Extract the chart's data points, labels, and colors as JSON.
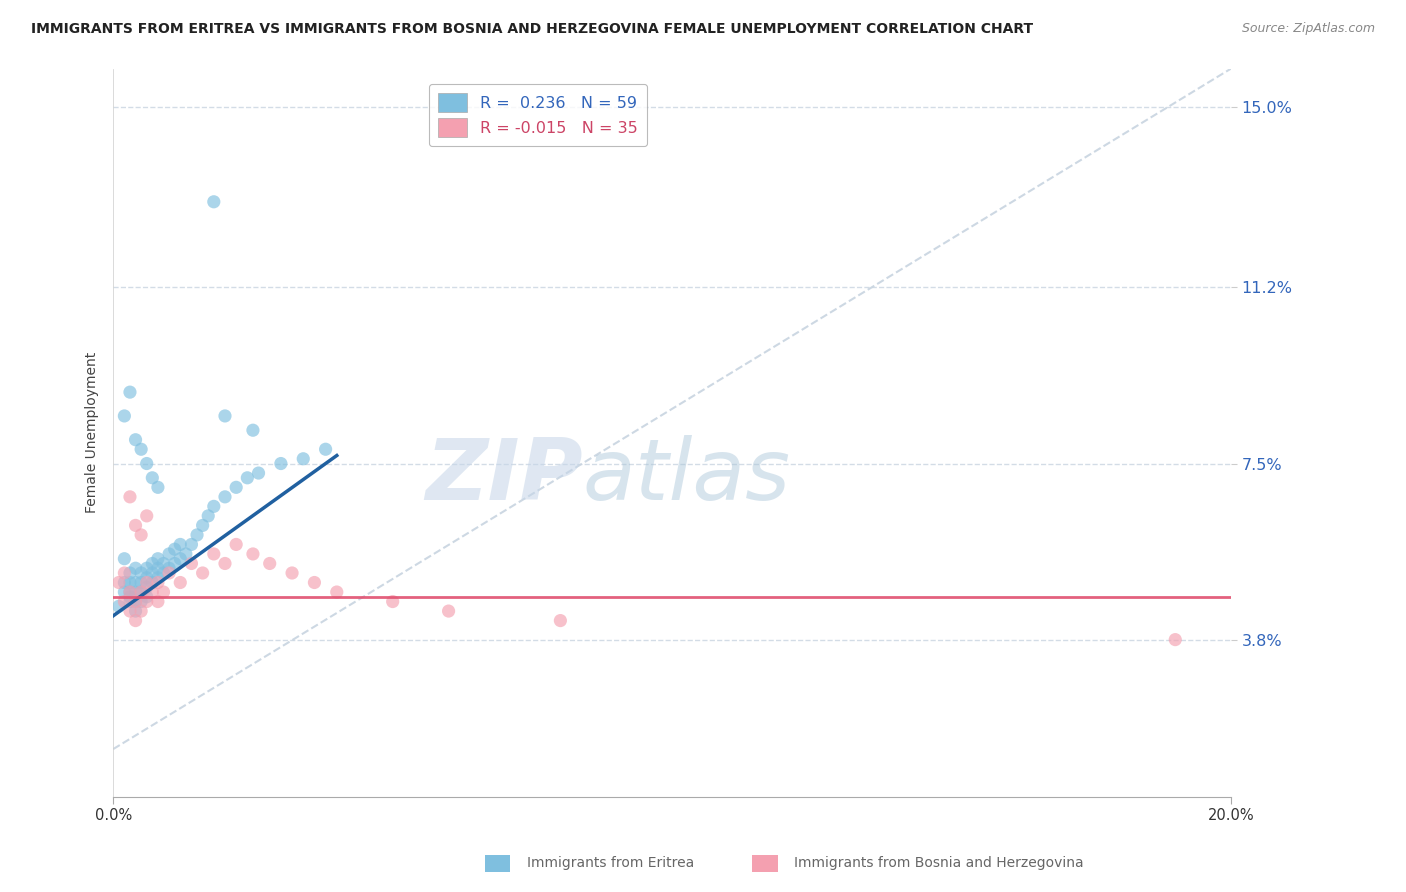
{
  "title": "IMMIGRANTS FROM ERITREA VS IMMIGRANTS FROM BOSNIA AND HERZEGOVINA FEMALE UNEMPLOYMENT CORRELATION CHART",
  "source": "Source: ZipAtlas.com",
  "ylabel": "Female Unemployment",
  "legend_label1": "Immigrants from Eritrea",
  "legend_label2": "Immigrants from Bosnia and Herzegovina",
  "r1": 0.236,
  "n1": 59,
  "r2": -0.015,
  "n2": 35,
  "xmin": 0.0,
  "xmax": 0.2,
  "ymin": 0.005,
  "ymax": 0.158,
  "yticks": [
    0.038,
    0.075,
    0.112,
    0.15
  ],
  "ytick_labels": [
    "3.8%",
    "7.5%",
    "11.2%",
    "15.0%"
  ],
  "color1": "#7fbfdf",
  "color2": "#f4a0b0",
  "trend_color1": "#2060a0",
  "trend_color2": "#e05070",
  "diag_color": "#c8d4e0",
  "watermark_zip": "ZIP",
  "watermark_atlas": "atlas",
  "background_color": "#ffffff",
  "blue_x": [
    0.001,
    0.002,
    0.002,
    0.002,
    0.003,
    0.003,
    0.003,
    0.003,
    0.003,
    0.004,
    0.004,
    0.004,
    0.004,
    0.004,
    0.005,
    0.005,
    0.005,
    0.005,
    0.006,
    0.006,
    0.006,
    0.006,
    0.007,
    0.007,
    0.007,
    0.008,
    0.008,
    0.008,
    0.009,
    0.009,
    0.01,
    0.01,
    0.011,
    0.011,
    0.012,
    0.012,
    0.013,
    0.014,
    0.015,
    0.016,
    0.017,
    0.018,
    0.02,
    0.022,
    0.024,
    0.026,
    0.03,
    0.034,
    0.038,
    0.018,
    0.002,
    0.003,
    0.004,
    0.005,
    0.006,
    0.007,
    0.008,
    0.02,
    0.025
  ],
  "blue_y": [
    0.045,
    0.05,
    0.055,
    0.048,
    0.047,
    0.046,
    0.048,
    0.05,
    0.052,
    0.044,
    0.046,
    0.048,
    0.05,
    0.053,
    0.046,
    0.048,
    0.05,
    0.052,
    0.047,
    0.049,
    0.051,
    0.053,
    0.05,
    0.052,
    0.054,
    0.051,
    0.053,
    0.055,
    0.052,
    0.054,
    0.053,
    0.056,
    0.054,
    0.057,
    0.055,
    0.058,
    0.056,
    0.058,
    0.06,
    0.062,
    0.064,
    0.066,
    0.068,
    0.07,
    0.072,
    0.073,
    0.075,
    0.076,
    0.078,
    0.13,
    0.085,
    0.09,
    0.08,
    0.078,
    0.075,
    0.072,
    0.07,
    0.085,
    0.082
  ],
  "pink_x": [
    0.001,
    0.002,
    0.002,
    0.003,
    0.003,
    0.004,
    0.004,
    0.005,
    0.005,
    0.006,
    0.006,
    0.007,
    0.008,
    0.008,
    0.009,
    0.01,
    0.012,
    0.014,
    0.016,
    0.018,
    0.02,
    0.022,
    0.025,
    0.028,
    0.032,
    0.036,
    0.04,
    0.05,
    0.06,
    0.003,
    0.004,
    0.005,
    0.006,
    0.19,
    0.08
  ],
  "pink_y": [
    0.05,
    0.046,
    0.052,
    0.044,
    0.048,
    0.042,
    0.046,
    0.044,
    0.048,
    0.046,
    0.05,
    0.048,
    0.046,
    0.05,
    0.048,
    0.052,
    0.05,
    0.054,
    0.052,
    0.056,
    0.054,
    0.058,
    0.056,
    0.054,
    0.052,
    0.05,
    0.048,
    0.046,
    0.044,
    0.068,
    0.062,
    0.06,
    0.064,
    0.038,
    0.042
  ],
  "trend1_x0": 0.0,
  "trend1_y0": 0.043,
  "trend1_x1": 0.038,
  "trend1_y1": 0.075,
  "trend2_y": 0.047
}
